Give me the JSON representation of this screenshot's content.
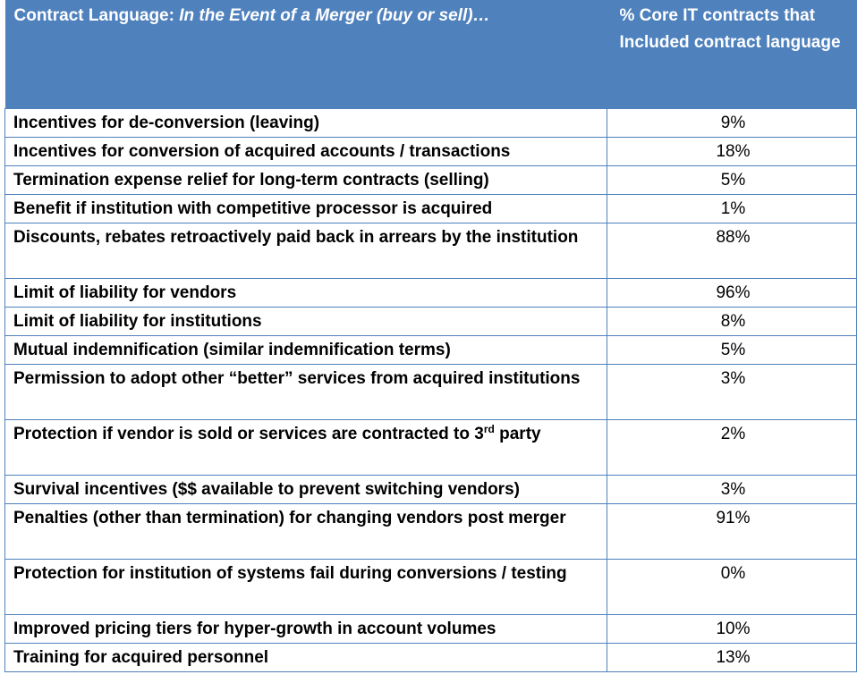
{
  "header": {
    "col1_prefix": "Contract Language: ",
    "col1_italic": "In the Event of a Merger (buy or sell)…",
    "col2": "% Core IT contracts that Included contract language"
  },
  "rows": [
    {
      "label": "Incentives for de-conversion (leaving)",
      "value": "9%"
    },
    {
      "label": "Incentives for conversion of acquired accounts / transactions",
      "value": "18%"
    },
    {
      "label": "Termination expense relief for long-term contracts (selling)",
      "value": "5%"
    },
    {
      "label": "Benefit if institution with competitive processor is acquired",
      "value": "1%"
    },
    {
      "label": "Discounts, rebates retroactively paid back in arrears by the institution",
      "value": "88%"
    },
    {
      "label": "Limit of liability for vendors",
      "value": "96%"
    },
    {
      "label": "Limit of liability for institutions",
      "value": "8%"
    },
    {
      "label": "Mutual indemnification (similar indemnification terms)",
      "value": "5%"
    },
    {
      "label": "Permission to adopt other “better” services from acquired institutions",
      "value": "3%"
    },
    {
      "label_pre": "Protection if vendor is sold or services are contracted to 3",
      "label_sup": "rd",
      "label_post": " party",
      "value": "2%"
    },
    {
      "label": "Survival incentives ($$ available to prevent switching vendors)",
      "value": "3%"
    },
    {
      "label": "Penalties (other than termination) for changing vendors post merger",
      "value": "91%"
    },
    {
      "label": "Protection for institution of systems fail during conversions / testing",
      "value": "0%"
    },
    {
      "label": "Improved pricing tiers for hyper-growth in account volumes",
      "value": "10%"
    },
    {
      "label": "Training for acquired personnel",
      "value": "13%"
    }
  ]
}
